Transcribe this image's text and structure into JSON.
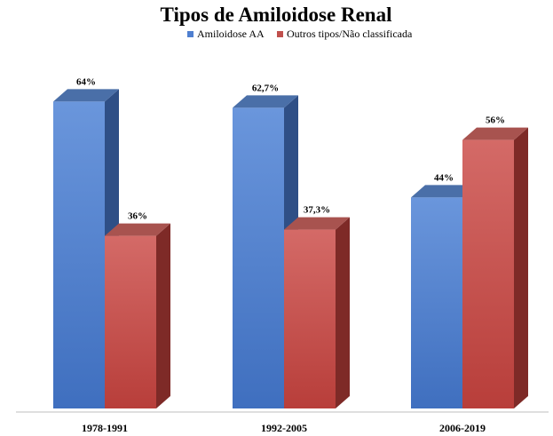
{
  "chart_data": {
    "type": "bar",
    "title": "Tipos de Amiloidose Renal",
    "categories": [
      "1978-1991",
      "1992-2005",
      "2006-2019"
    ],
    "series": [
      {
        "name": "Amiloidose AA",
        "values": [
          64,
          62.7,
          44
        ],
        "labels": [
          "64%",
          "62,7%",
          "44%"
        ],
        "color": "#4f7fd0"
      },
      {
        "name": "Outros tipos/Não classificada",
        "values": [
          36,
          37.3,
          56
        ],
        "labels": [
          "36%",
          "37,3%",
          "56%"
        ],
        "color": "#c0504d"
      }
    ],
    "ylim": [
      0,
      100
    ],
    "grid": false,
    "legend_position": "top-center",
    "style": "3d-column"
  }
}
